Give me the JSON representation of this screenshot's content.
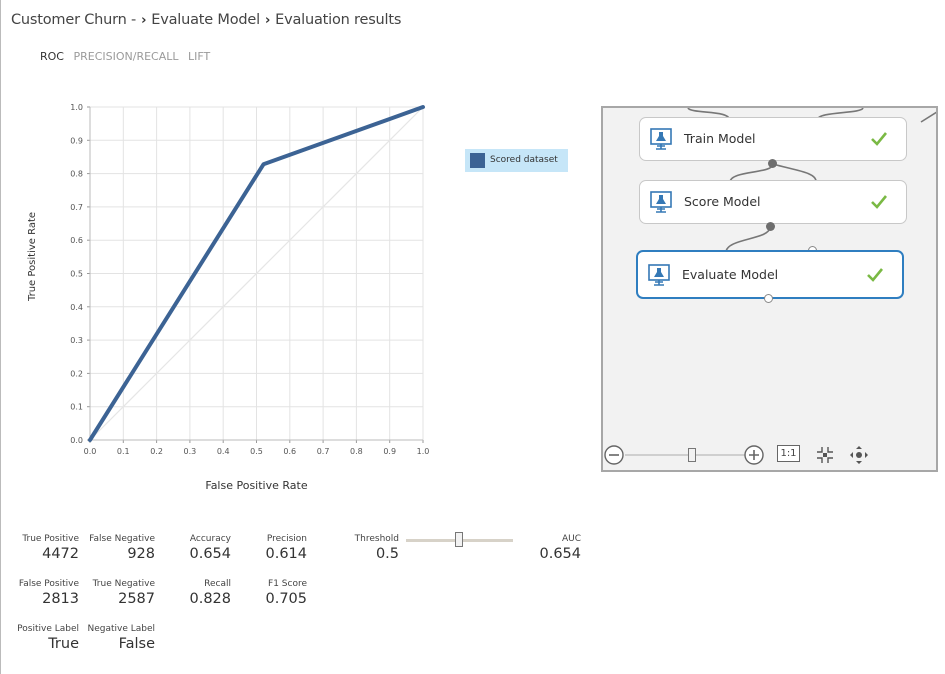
{
  "breadcrumb": {
    "items": [
      "Customer Churn -",
      "Evaluate Model",
      "Evaluation results"
    ]
  },
  "tabs": [
    {
      "label": "ROC",
      "active": true
    },
    {
      "label": "PRECISION/RECALL",
      "active": false
    },
    {
      "label": "LIFT",
      "active": false
    }
  ],
  "chart_data": {
    "type": "line",
    "xlabel": "False Positive Rate",
    "ylabel": "True Positive Rate",
    "xlim": [
      0,
      1
    ],
    "ylim": [
      0,
      1
    ],
    "xticks": [
      "0.0",
      "0.1",
      "0.2",
      "0.3",
      "0.4",
      "0.5",
      "0.6",
      "0.7",
      "0.8",
      "0.9",
      "1.0"
    ],
    "yticks": [
      "0.0",
      "0.1",
      "0.2",
      "0.3",
      "0.4",
      "0.5",
      "0.6",
      "0.7",
      "0.8",
      "0.9",
      "1.0"
    ],
    "grid": true,
    "legend_position": "right",
    "series": [
      {
        "name": "Scored dataset",
        "color": "#3c6394",
        "x": [
          0,
          0.521,
          1
        ],
        "y": [
          0,
          0.828,
          1
        ]
      }
    ],
    "reference_line": {
      "x": [
        0,
        1
      ],
      "y": [
        0,
        1
      ],
      "color": "#e6e6e6"
    }
  },
  "metrics": {
    "true_positive": {
      "label": "True Positive",
      "value": "4472"
    },
    "false_negative": {
      "label": "False Negative",
      "value": "928"
    },
    "accuracy": {
      "label": "Accuracy",
      "value": "0.654"
    },
    "precision": {
      "label": "Precision",
      "value": "0.614"
    },
    "threshold": {
      "label": "Threshold",
      "value": "0.5"
    },
    "auc": {
      "label": "AUC",
      "value": "0.654"
    },
    "false_positive": {
      "label": "False Positive",
      "value": "2813"
    },
    "true_negative": {
      "label": "True Negative",
      "value": "2587"
    },
    "recall": {
      "label": "Recall",
      "value": "0.828"
    },
    "f1_score": {
      "label": "F1 Score",
      "value": "0.705"
    },
    "positive_label": {
      "label": "Positive Label",
      "value": "True"
    },
    "negative_label": {
      "label": "Negative Label",
      "value": "False"
    }
  },
  "threshold_slider": {
    "level": 0.5
  },
  "canvas": {
    "nodes": [
      {
        "label": "Train Model",
        "status": "completed",
        "icon": "flask-monitor-icon"
      },
      {
        "label": "Score Model",
        "status": "completed",
        "icon": "flask-monitor-icon"
      },
      {
        "label": "Evaluate Model",
        "status": "completed",
        "icon": "flask-monitor-icon",
        "selected": true
      }
    ],
    "zoom": {
      "actual_size_label": "1:1",
      "level": 0.6
    },
    "colors": {
      "selected_border": "#2f7ec0",
      "check": "#7ab944",
      "icon": "#3578b5"
    }
  }
}
